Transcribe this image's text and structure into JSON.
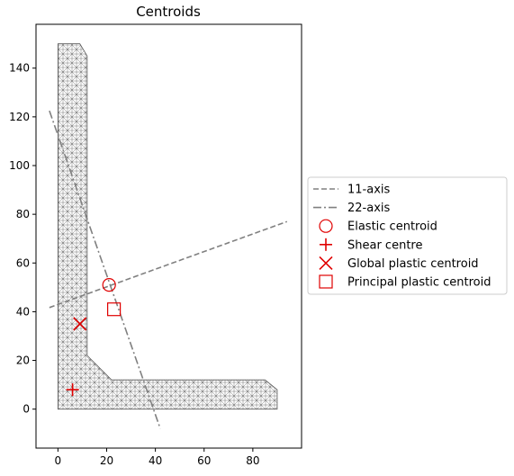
{
  "chart_data": {
    "type": "scatter",
    "title": "Centroids",
    "xlabel": "",
    "ylabel": "",
    "xlim": [
      -9,
      100
    ],
    "ylim": [
      -16,
      158
    ],
    "x_ticks": [
      0,
      20,
      40,
      60,
      80
    ],
    "y_ticks": [
      0,
      20,
      40,
      60,
      80,
      100,
      120,
      140
    ],
    "grid": false,
    "legend_position": "outside-right",
    "section": {
      "shape": "unequal angle",
      "outline": [
        [
          0,
          0
        ],
        [
          90,
          0
        ],
        [
          90,
          8
        ],
        [
          85,
          12
        ],
        [
          22,
          12
        ],
        [
          12,
          22
        ],
        [
          12,
          145
        ],
        [
          9,
          150
        ],
        [
          0,
          150
        ]
      ],
      "mesh_color": "#555555"
    },
    "lines": [
      {
        "name": "11-axis",
        "style": "dashed",
        "color": "#808080",
        "points": [
          [
            -3.5,
            41.7
          ],
          [
            94,
            77
          ]
        ]
      },
      {
        "name": "22-axis",
        "style": "dashdot",
        "color": "#808080",
        "points": [
          [
            -3.5,
            122.5
          ],
          [
            42,
            -8
          ]
        ]
      }
    ],
    "markers": [
      {
        "name": "Elastic centroid",
        "marker": "circle",
        "color": "#e00000",
        "x": 21,
        "y": 51
      },
      {
        "name": "Shear centre",
        "marker": "plus",
        "color": "#e00000",
        "x": 6,
        "y": 8
      },
      {
        "name": "Global plastic centroid",
        "marker": "x",
        "color": "#e00000",
        "x": 9,
        "y": 35
      },
      {
        "name": "Principal plastic centroid",
        "marker": "square",
        "color": "#e00000",
        "x": 23,
        "y": 41
      }
    ]
  }
}
